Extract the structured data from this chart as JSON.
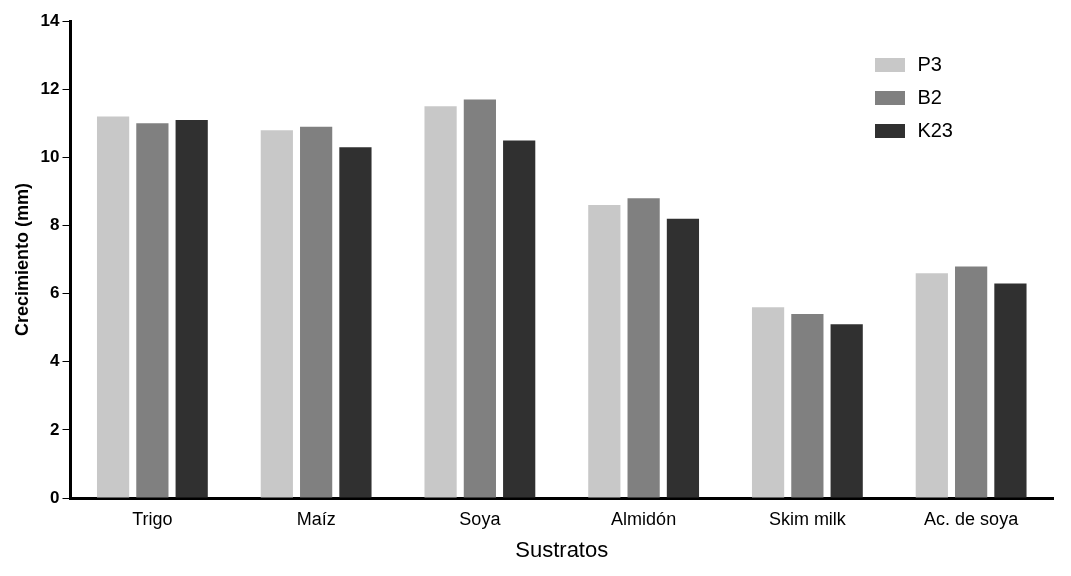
{
  "chart_data": {
    "type": "bar",
    "xlabel": "Sustratos",
    "ylabel": "Crecimiento (mm)",
    "categories": [
      "Trigo",
      "Maíz",
      "Soya",
      "Almidón",
      "Skim milk",
      "Ac. de soya"
    ],
    "series": [
      {
        "name": "P3",
        "color": "#c8c8c8",
        "values": [
          11.2,
          10.8,
          11.5,
          8.6,
          5.6,
          6.6
        ]
      },
      {
        "name": "B2",
        "color": "#808080",
        "values": [
          11.0,
          10.9,
          11.7,
          8.8,
          5.4,
          6.8
        ]
      },
      {
        "name": "K23",
        "color": "#303030",
        "values": [
          11.1,
          10.3,
          10.5,
          8.2,
          5.1,
          6.3
        ]
      }
    ],
    "ylim": [
      0,
      14
    ],
    "yticks": [
      0,
      2,
      4,
      6,
      8,
      10,
      12,
      14
    ],
    "grid": false,
    "legend": "top right"
  }
}
